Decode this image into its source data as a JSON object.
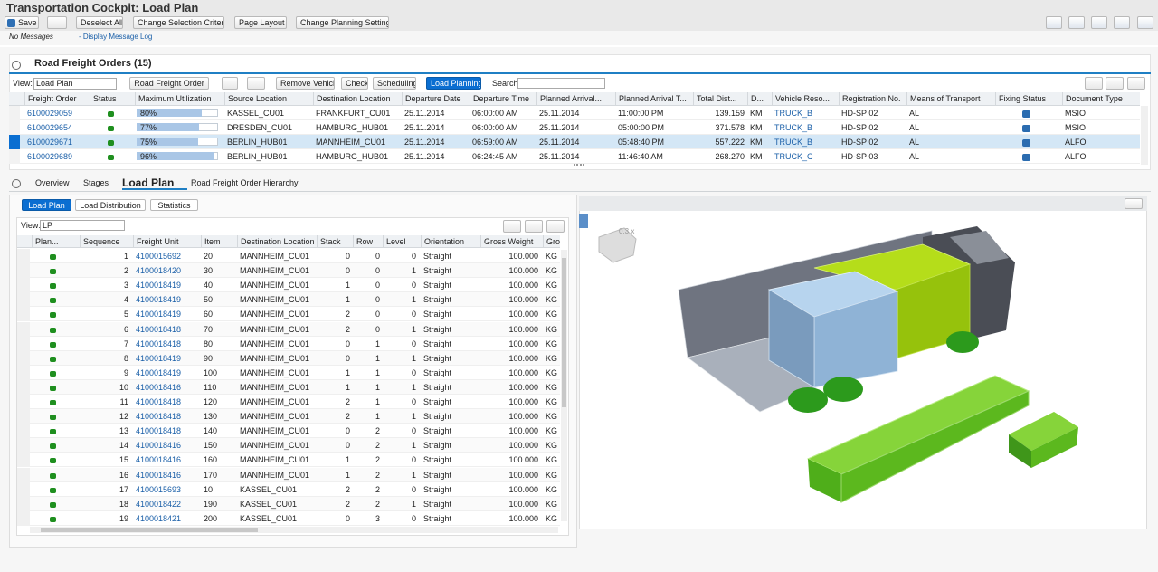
{
  "header": {
    "title": "Transportation Cockpit: Load Plan",
    "toolbar": [
      "Save",
      "Deselect All",
      "Change Selection Criteria",
      "Page Layout",
      "Change Planning Settings"
    ],
    "messages": "No Messages",
    "message_log": "- Display Message Log"
  },
  "orders": {
    "title": "Road Freight Orders (15)",
    "view_label": "View:",
    "view": "Load Plan",
    "buttons": [
      "Road Freight Order",
      "Remove Vehicle",
      "Check",
      "Scheduling",
      "Load Planning"
    ],
    "search_label": "Search:",
    "columns": [
      "Freight Order",
      "Status",
      "Maximum Utilization",
      "Source Location",
      "Destination Location",
      "Departure Date",
      "Departure Time",
      "Planned Arrival...",
      "Planned Arrival T...",
      "Total Dist...",
      "D...",
      "Vehicle Reso...",
      "Registration No.",
      "Means of Transport",
      "Fixing Status",
      "Document Type"
    ],
    "rows": [
      [
        "6100029059",
        "80%",
        "KASSEL_CU01",
        "FRANKFURT_CU01",
        "25.11.2014",
        "06:00:00 AM",
        "25.11.2014",
        "11:00:00 PM",
        "139.159",
        "KM",
        "TRUCK_B",
        "HD-SP 02",
        "AL",
        "MSIO"
      ],
      [
        "6100029654",
        "77%",
        "DRESDEN_CU01",
        "HAMBURG_HUB01",
        "25.11.2014",
        "06:00:00 AM",
        "25.11.2014",
        "05:00:00 PM",
        "371.578",
        "KM",
        "TRUCK_B",
        "HD-SP 02",
        "AL",
        "MSIO"
      ],
      [
        "6100029671",
        "75%",
        "BERLIN_HUB01",
        "MANNHEIM_CU01",
        "25.11.2014",
        "06:59:00 AM",
        "25.11.2014",
        "05:48:40 PM",
        "557.222",
        "KM",
        "TRUCK_B",
        "HD-SP 02",
        "AL",
        "ALFO"
      ],
      [
        "6100029689",
        "96%",
        "BERLIN_HUB01",
        "HAMBURG_HUB01",
        "25.11.2014",
        "06:24:45 AM",
        "25.11.2014",
        "11:46:40 AM",
        "268.270",
        "KM",
        "TRUCK_C",
        "HD-SP 03",
        "AL",
        "ALFO"
      ]
    ]
  },
  "tabs": [
    "Overview",
    "Stages",
    "Load Plan",
    "Road Freight Order Hierarchy"
  ],
  "subtabs": [
    "Load Plan",
    "Load Distribution",
    "Statistics"
  ],
  "load_plan": {
    "view_label": "View:",
    "view": "LP",
    "columns": [
      "Plan...",
      "Sequence",
      "Freight Unit",
      "Item",
      "Destination Location",
      "Stack",
      "Row",
      "Level",
      "Orientation",
      "Gross Weight",
      "Gro"
    ],
    "rows": [
      [
        "1",
        "4100015692",
        "20",
        "MANNHEIM_CU01",
        "0",
        "0",
        "0",
        "Straight",
        "100.000",
        "KG"
      ],
      [
        "2",
        "4100018420",
        "30",
        "MANNHEIM_CU01",
        "0",
        "0",
        "1",
        "Straight",
        "100.000",
        "KG"
      ],
      [
        "3",
        "4100018419",
        "40",
        "MANNHEIM_CU01",
        "1",
        "0",
        "0",
        "Straight",
        "100.000",
        "KG"
      ],
      [
        "4",
        "4100018419",
        "50",
        "MANNHEIM_CU01",
        "1",
        "0",
        "1",
        "Straight",
        "100.000",
        "KG"
      ],
      [
        "5",
        "4100018419",
        "60",
        "MANNHEIM_CU01",
        "2",
        "0",
        "0",
        "Straight",
        "100.000",
        "KG"
      ],
      [
        "6",
        "4100018418",
        "70",
        "MANNHEIM_CU01",
        "2",
        "0",
        "1",
        "Straight",
        "100.000",
        "KG"
      ],
      [
        "7",
        "4100018418",
        "80",
        "MANNHEIM_CU01",
        "0",
        "1",
        "0",
        "Straight",
        "100.000",
        "KG"
      ],
      [
        "8",
        "4100018419",
        "90",
        "MANNHEIM_CU01",
        "0",
        "1",
        "1",
        "Straight",
        "100.000",
        "KG"
      ],
      [
        "9",
        "4100018419",
        "100",
        "MANNHEIM_CU01",
        "1",
        "1",
        "0",
        "Straight",
        "100.000",
        "KG"
      ],
      [
        "10",
        "4100018416",
        "110",
        "MANNHEIM_CU01",
        "1",
        "1",
        "1",
        "Straight",
        "100.000",
        "KG"
      ],
      [
        "11",
        "4100018418",
        "120",
        "MANNHEIM_CU01",
        "2",
        "1",
        "0",
        "Straight",
        "100.000",
        "KG"
      ],
      [
        "12",
        "4100018418",
        "130",
        "MANNHEIM_CU01",
        "2",
        "1",
        "1",
        "Straight",
        "100.000",
        "KG"
      ],
      [
        "13",
        "4100018418",
        "140",
        "MANNHEIM_CU01",
        "0",
        "2",
        "0",
        "Straight",
        "100.000",
        "KG"
      ],
      [
        "14",
        "4100018416",
        "150",
        "MANNHEIM_CU01",
        "0",
        "2",
        "1",
        "Straight",
        "100.000",
        "KG"
      ],
      [
        "15",
        "4100018416",
        "160",
        "MANNHEIM_CU01",
        "1",
        "2",
        "0",
        "Straight",
        "100.000",
        "KG"
      ],
      [
        "16",
        "4100018416",
        "170",
        "MANNHEIM_CU01",
        "1",
        "2",
        "1",
        "Straight",
        "100.000",
        "KG"
      ],
      [
        "17",
        "4100015693",
        "10",
        "KASSEL_CU01",
        "2",
        "2",
        "0",
        "Straight",
        "100.000",
        "KG"
      ],
      [
        "18",
        "4100018422",
        "190",
        "KASSEL_CU01",
        "2",
        "2",
        "1",
        "Straight",
        "100.000",
        "KG"
      ],
      [
        "19",
        "4100018421",
        "200",
        "KASSEL_CU01",
        "0",
        "3",
        "0",
        "Straight",
        "100.000",
        "KG"
      ]
    ]
  },
  "viewer": {
    "zoom": "0.3 x"
  }
}
